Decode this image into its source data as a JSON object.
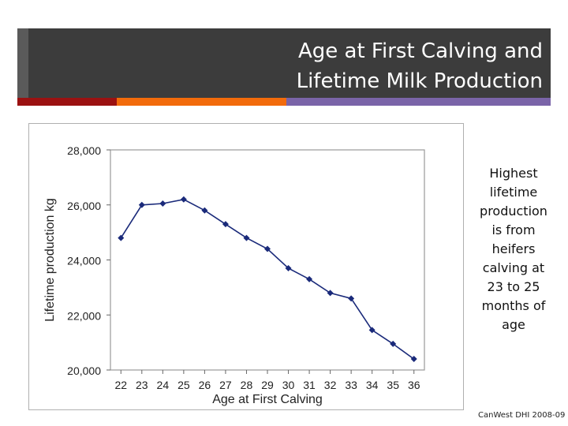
{
  "slide": {
    "title_line1": "Age at First Calving and",
    "title_line2": "Lifetime Milk Production",
    "side_note": "Highest lifetime production is from heifers calving at 23 to 25 months of age",
    "source": "CanWest DHI 2008-09"
  },
  "colors": {
    "title_band": "#3c3c3c",
    "bar_red": "#9b1111",
    "bar_orange": "#f26b0b",
    "bar_purple": "#7a64a8",
    "series": "#1a2a7a"
  },
  "chart_data": {
    "type": "line",
    "title": "",
    "xlabel": "Age at First Calving",
    "ylabel": "Lifetime production kg",
    "x": [
      22,
      23,
      24,
      25,
      26,
      27,
      28,
      29,
      30,
      31,
      32,
      33,
      34,
      35,
      36
    ],
    "series": [
      {
        "name": "Lifetime production",
        "values": [
          24800,
          26000,
          26050,
          26200,
          25800,
          25300,
          24800,
          24400,
          23700,
          23300,
          22800,
          22600,
          21450,
          20950,
          20400
        ]
      }
    ],
    "ylim": [
      20000,
      28000
    ],
    "yticks": [
      20000,
      22000,
      24000,
      26000,
      28000
    ],
    "ytick_labels": [
      "20,000",
      "22,000",
      "24,000",
      "26,000",
      "28,000"
    ],
    "grid": false,
    "legend": "none"
  }
}
